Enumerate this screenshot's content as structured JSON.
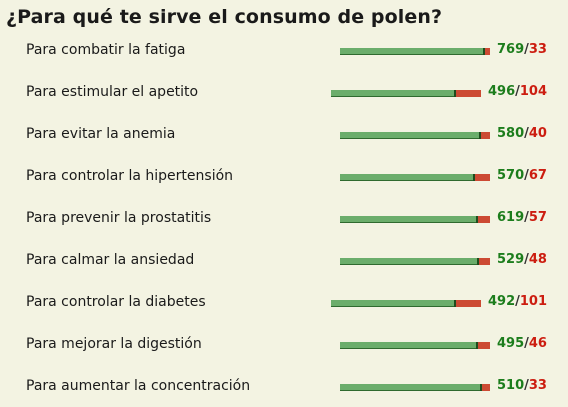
{
  "title": "¿Para qué te sirve el consumo de polen?",
  "colors": {
    "yes": "#1c7d1c",
    "no": "#cc1d10",
    "bar_yes": "#6bad6b",
    "bar_no": "#cc4a33"
  },
  "separator": "/",
  "items": [
    {
      "label": "Para combatir la fatiga",
      "yes": "769",
      "no": "33"
    },
    {
      "label": "Para estimular el apetito",
      "yes": "496",
      "no": "104"
    },
    {
      "label": "Para evitar la anemia",
      "yes": "580",
      "no": "40"
    },
    {
      "label": "Para controlar la hipertensión",
      "yes": "570",
      "no": "67"
    },
    {
      "label": "Para prevenir la prostatitis",
      "yes": "619",
      "no": "57"
    },
    {
      "label": "Para calmar la ansiedad",
      "yes": "529",
      "no": "48"
    },
    {
      "label": "Para controlar la diabetes",
      "yes": "492",
      "no": "101"
    },
    {
      "label": "Para mejorar la digestión",
      "yes": "495",
      "no": "46"
    },
    {
      "label": "Para aumentar la concentración",
      "yes": "510",
      "no": "33"
    }
  ]
}
